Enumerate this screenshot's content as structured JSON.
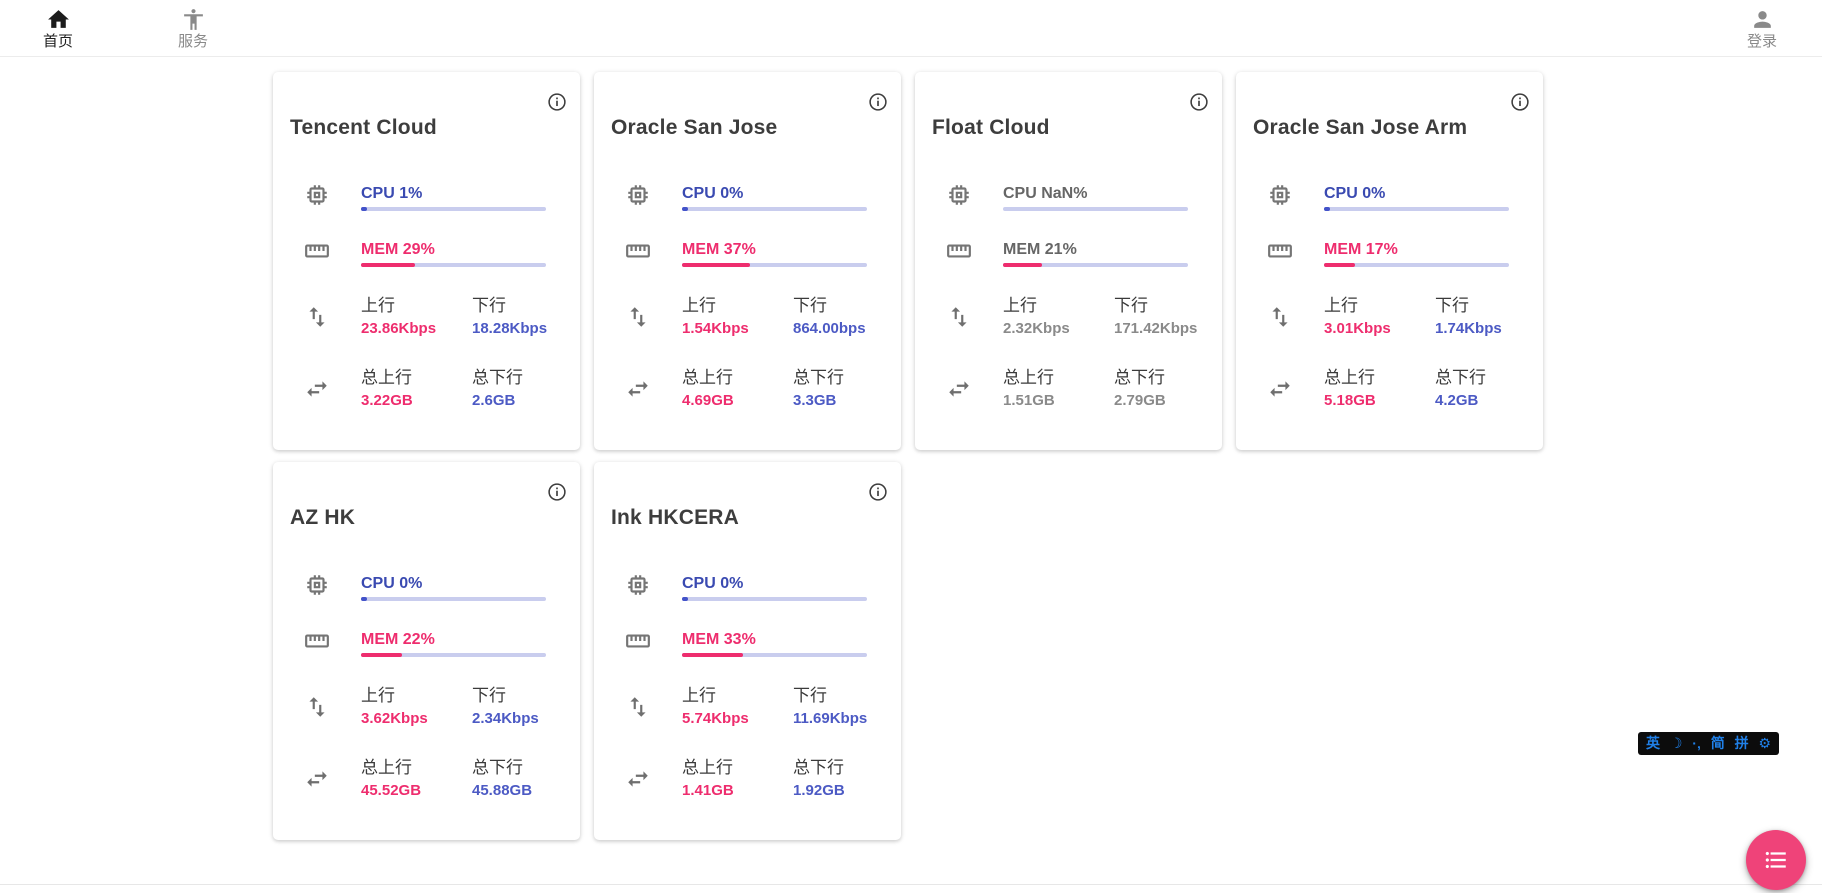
{
  "nav": {
    "home": {
      "label": "首页"
    },
    "services": {
      "label": "服务"
    },
    "login": {
      "label": "登录"
    }
  },
  "cards": [
    {
      "title": "Tencent Cloud",
      "muted": false,
      "cpu_label": "CPU 1%",
      "cpu_percent": 1,
      "mem_label": "MEM 29%",
      "mem_percent": 29,
      "up_label": "上行",
      "up_value": "23.86Kbps",
      "down_label": "下行",
      "down_value": "18.28Kbps",
      "total_up_label": "总上行",
      "total_up_value": "3.22GB",
      "total_down_label": "总下行",
      "total_down_value": "2.6GB"
    },
    {
      "title": "Oracle San Jose",
      "muted": false,
      "cpu_label": "CPU 0%",
      "cpu_percent": 0,
      "mem_label": "MEM 37%",
      "mem_percent": 37,
      "up_label": "上行",
      "up_value": "1.54Kbps",
      "down_label": "下行",
      "down_value": "864.00bps",
      "total_up_label": "总上行",
      "total_up_value": "4.69GB",
      "total_down_label": "总下行",
      "total_down_value": "3.3GB"
    },
    {
      "title": "Float Cloud",
      "muted": true,
      "cpu_label": "CPU NaN%",
      "cpu_percent": null,
      "mem_label": "MEM 21%",
      "mem_percent": 21,
      "up_label": "上行",
      "up_value": "2.32Kbps",
      "down_label": "下行",
      "down_value": "171.42Kbps",
      "total_up_label": "总上行",
      "total_up_value": "1.51GB",
      "total_down_label": "总下行",
      "total_down_value": "2.79GB"
    },
    {
      "title": "Oracle San Jose Arm",
      "muted": false,
      "cpu_label": "CPU 0%",
      "cpu_percent": 0,
      "mem_label": "MEM 17%",
      "mem_percent": 17,
      "up_label": "上行",
      "up_value": "3.01Kbps",
      "down_label": "下行",
      "down_value": "1.74Kbps",
      "total_up_label": "总上行",
      "total_up_value": "5.18GB",
      "total_down_label": "总下行",
      "total_down_value": "4.2GB"
    },
    {
      "title": "AZ HK",
      "muted": false,
      "cpu_label": "CPU 0%",
      "cpu_percent": 0,
      "mem_label": "MEM 22%",
      "mem_percent": 22,
      "up_label": "上行",
      "up_value": "3.62Kbps",
      "down_label": "下行",
      "down_value": "2.34Kbps",
      "total_up_label": "总上行",
      "total_up_value": "45.52GB",
      "total_down_label": "总下行",
      "total_down_value": "45.88GB"
    },
    {
      "title": "Ink HKCERA",
      "muted": false,
      "cpu_label": "CPU 0%",
      "cpu_percent": 0,
      "mem_label": "MEM 33%",
      "mem_percent": 33,
      "up_label": "上行",
      "up_value": "5.74Kbps",
      "down_label": "下行",
      "down_value": "11.69Kbps",
      "total_up_label": "总上行",
      "total_up_value": "1.41GB",
      "total_down_label": "总下行",
      "total_down_value": "1.92GB"
    }
  ],
  "ime_toolbar": {
    "items": [
      "英",
      "☽",
      "·‚",
      "简",
      "拼",
      "⚙"
    ]
  },
  "fab": {
    "icon": "list-icon"
  },
  "colors": {
    "accent_blue": "#3a4ab1",
    "value_blue": "#4c5ac4",
    "accent_pink": "#ee2d6e",
    "muted_gray": "#8a8a8a",
    "progress_track": "#c9cdee",
    "fab_pink": "#ef4379",
    "ime_blue": "#2080e8"
  }
}
